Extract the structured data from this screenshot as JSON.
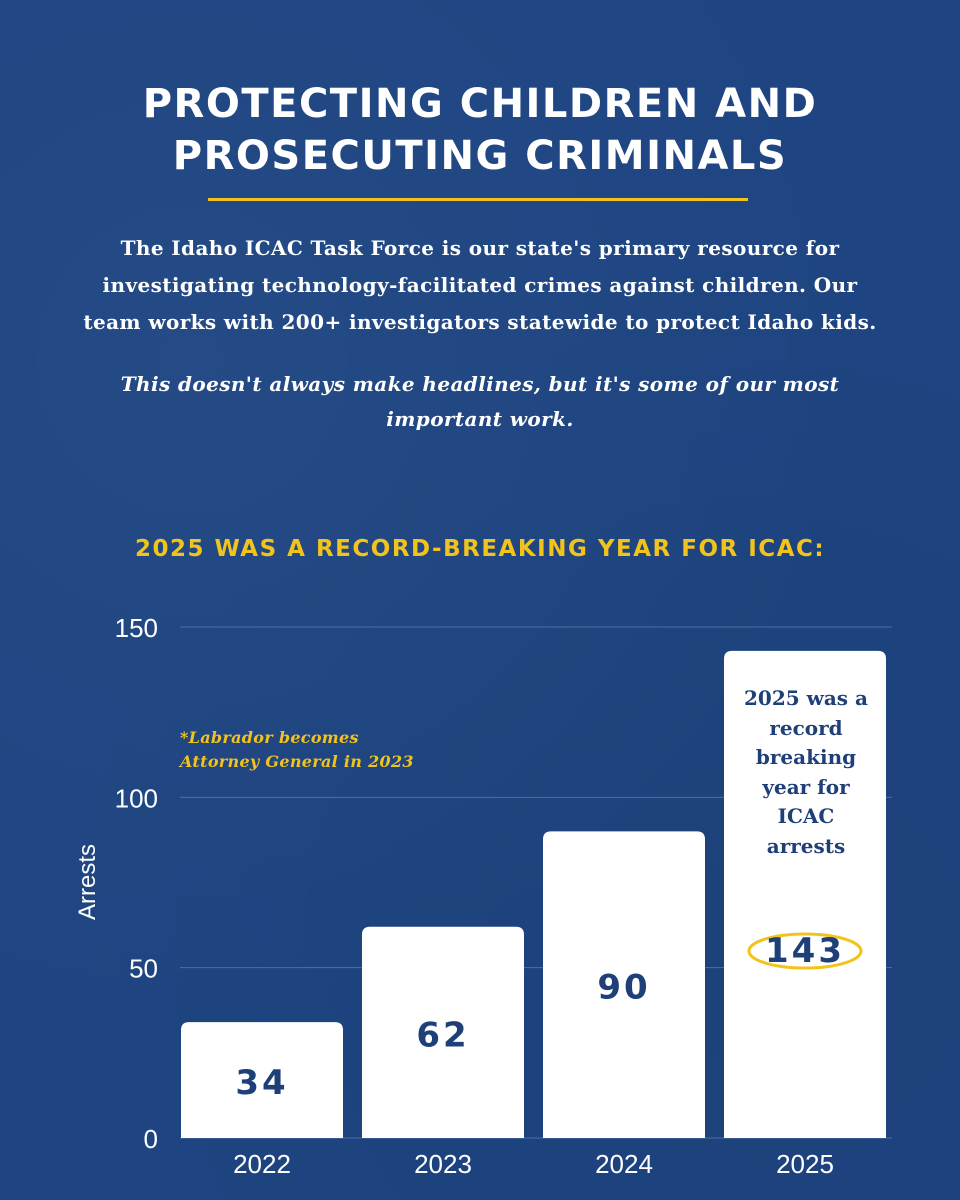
{
  "header": {
    "title_line1": "PROTECTING CHILDREN AND",
    "title_line2": "PROSECUTING CRIMINALS"
  },
  "intro": {
    "line1": "The Idaho ICAC Task Force is our state's primary resource for",
    "line2": "investigating technology-facilitated crimes against children. Our",
    "line3": "team works with 200+ investigators statewide to protect Idaho kids.",
    "tagline_line1": "This doesn't always make headlines, but it's some of our most",
    "tagline_line2": "important work."
  },
  "subhead": "2025 WAS A RECORD-BREAKING YEAR FOR ICAC:",
  "note": {
    "line1": "*Labrador becomes",
    "line2": "Attorney General in 2023"
  },
  "callout": {
    "line1": "2025 was a",
    "line2": "record",
    "line3": "breaking",
    "line4": "year for",
    "line5": "ICAC",
    "line6": "arrests"
  },
  "colors": {
    "background": "#1e4582",
    "accent": "#f2c31b",
    "bar": "#ffffff",
    "bar_label": "#1e3f78",
    "gridline": "#4e6ea3"
  },
  "chart_data": {
    "type": "bar",
    "categories": [
      "2022",
      "2023",
      "2024",
      "2025"
    ],
    "values": [
      34,
      62,
      90,
      143
    ],
    "ylabel": "Arrests",
    "xlabel": "",
    "ylim": [
      0,
      150
    ],
    "yticks": [
      0,
      50,
      100,
      150
    ],
    "grid": true,
    "highlight": "2025"
  }
}
